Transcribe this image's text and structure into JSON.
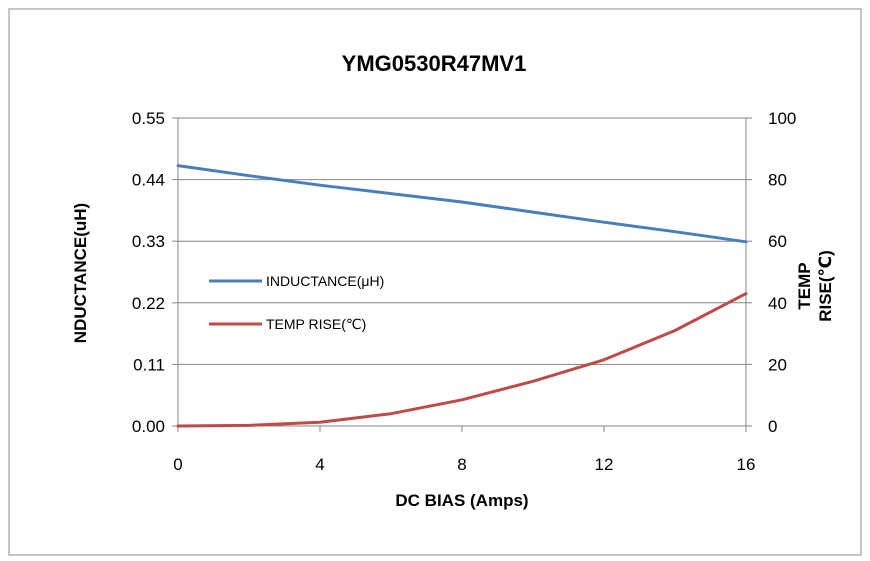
{
  "chart_data": {
    "type": "line",
    "title": "YMG0530R47MV1",
    "xlabel": "DC BIAS (Amps)",
    "ylabel": "NDUCTANCE(uH)",
    "y2label_lines": [
      "TEMP",
      "RISE(℃)"
    ],
    "xlim": [
      0,
      16
    ],
    "ylim": [
      0,
      0.55
    ],
    "y2lim": [
      0,
      100
    ],
    "x_ticks": [
      "0",
      "4",
      "8",
      "12",
      "16"
    ],
    "y_ticks": [
      "0.00",
      "0.11",
      "0.22",
      "0.33",
      "0.44",
      "0.55"
    ],
    "y2_ticks": [
      "0",
      "20",
      "40",
      "60",
      "80",
      "100"
    ],
    "grid": "horizontal",
    "legend_position": "center-left",
    "series": [
      {
        "name": "INDUCTANCE(μH)",
        "axis": "left",
        "color": "#4a7ebb",
        "x": [
          0,
          2,
          4,
          6,
          8,
          10,
          12,
          14,
          16
        ],
        "y": [
          0.465,
          0.447,
          0.43,
          0.415,
          0.4,
          0.382,
          0.364,
          0.347,
          0.329
        ]
      },
      {
        "name": "TEMP RISE(℃)",
        "axis": "right",
        "color": "#be4b48",
        "x": [
          0,
          2,
          4,
          6,
          8,
          10,
          12,
          14,
          16
        ],
        "y": [
          0,
          0.2,
          1.2,
          4,
          8.5,
          14.5,
          21.5,
          31,
          43
        ]
      }
    ]
  }
}
